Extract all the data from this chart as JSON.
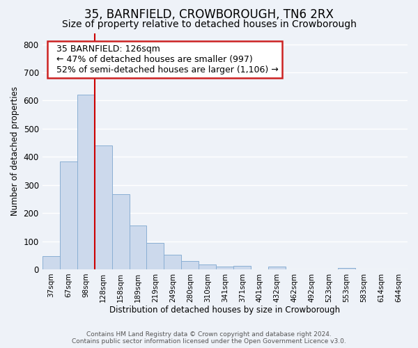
{
  "title": "35, BARNFIELD, CROWBOROUGH, TN6 2RX",
  "subtitle": "Size of property relative to detached houses in Crowborough",
  "xlabel": "Distribution of detached houses by size in Crowborough",
  "ylabel": "Number of detached properties",
  "bar_color": "#ccd9ec",
  "bar_edge_color": "#8aafd4",
  "vline_color": "#cc0000",
  "categories": [
    "37sqm",
    "67sqm",
    "98sqm",
    "128sqm",
    "158sqm",
    "189sqm",
    "219sqm",
    "249sqm",
    "280sqm",
    "310sqm",
    "341sqm",
    "371sqm",
    "401sqm",
    "432sqm",
    "462sqm",
    "492sqm",
    "523sqm",
    "553sqm",
    "583sqm",
    "614sqm",
    "644sqm"
  ],
  "values": [
    47,
    383,
    622,
    440,
    266,
    156,
    95,
    51,
    30,
    16,
    10,
    12,
    0,
    10,
    0,
    0,
    0,
    5,
    0,
    0,
    0
  ],
  "ylim": [
    0,
    840
  ],
  "yticks": [
    0,
    100,
    200,
    300,
    400,
    500,
    600,
    700,
    800
  ],
  "annotation_title": "35 BARNFIELD: 126sqm",
  "annotation_line1": "← 47% of detached houses are smaller (997)",
  "annotation_line2": "52% of semi-detached houses are larger (1,106) →",
  "footer1": "Contains HM Land Registry data © Crown copyright and database right 2024.",
  "footer2": "Contains public sector information licensed under the Open Government Licence v3.0.",
  "background_color": "#eef2f8",
  "grid_color": "#ffffff",
  "title_fontsize": 12,
  "subtitle_fontsize": 10,
  "annotation_box_color": "#ffffff",
  "annotation_box_edge": "#cc2222"
}
